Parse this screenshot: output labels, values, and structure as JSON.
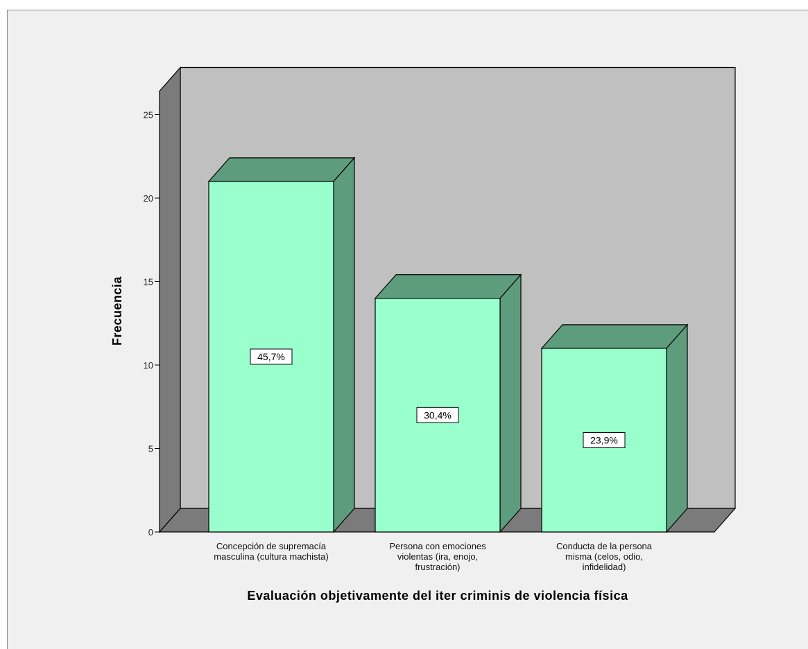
{
  "chart_data": {
    "type": "bar",
    "style": "3d",
    "title": "",
    "xlabel": "Evaluación objetivamente del iter criminis de violencia física",
    "ylabel": "Frecuencia",
    "ylim": [
      0,
      25
    ],
    "yticks": [
      0,
      5,
      10,
      15,
      20,
      25
    ],
    "grid": false,
    "categories": [
      [
        "Concepción de supremacía",
        "masculina (cultura machista)"
      ],
      [
        "Persona con emociones",
        "violentas (ira, enojo,",
        "frustración)"
      ],
      [
        "Conducta de la persona",
        "misma (celos, odio,",
        "infidelidad)"
      ]
    ],
    "values": [
      21,
      14,
      11
    ],
    "data_labels": [
      "45,7%",
      "30,4%",
      "23,9%"
    ],
    "colors": {
      "bar_front": "#99ffcc",
      "bar_side": "#5d9d7e",
      "bar_top": "#5d9d7e",
      "back_wall": "#c0c0c0",
      "side_wall": "#7b7b7b",
      "floor": "#7b7b7b",
      "frame_bg": "#f0f0f0"
    }
  }
}
